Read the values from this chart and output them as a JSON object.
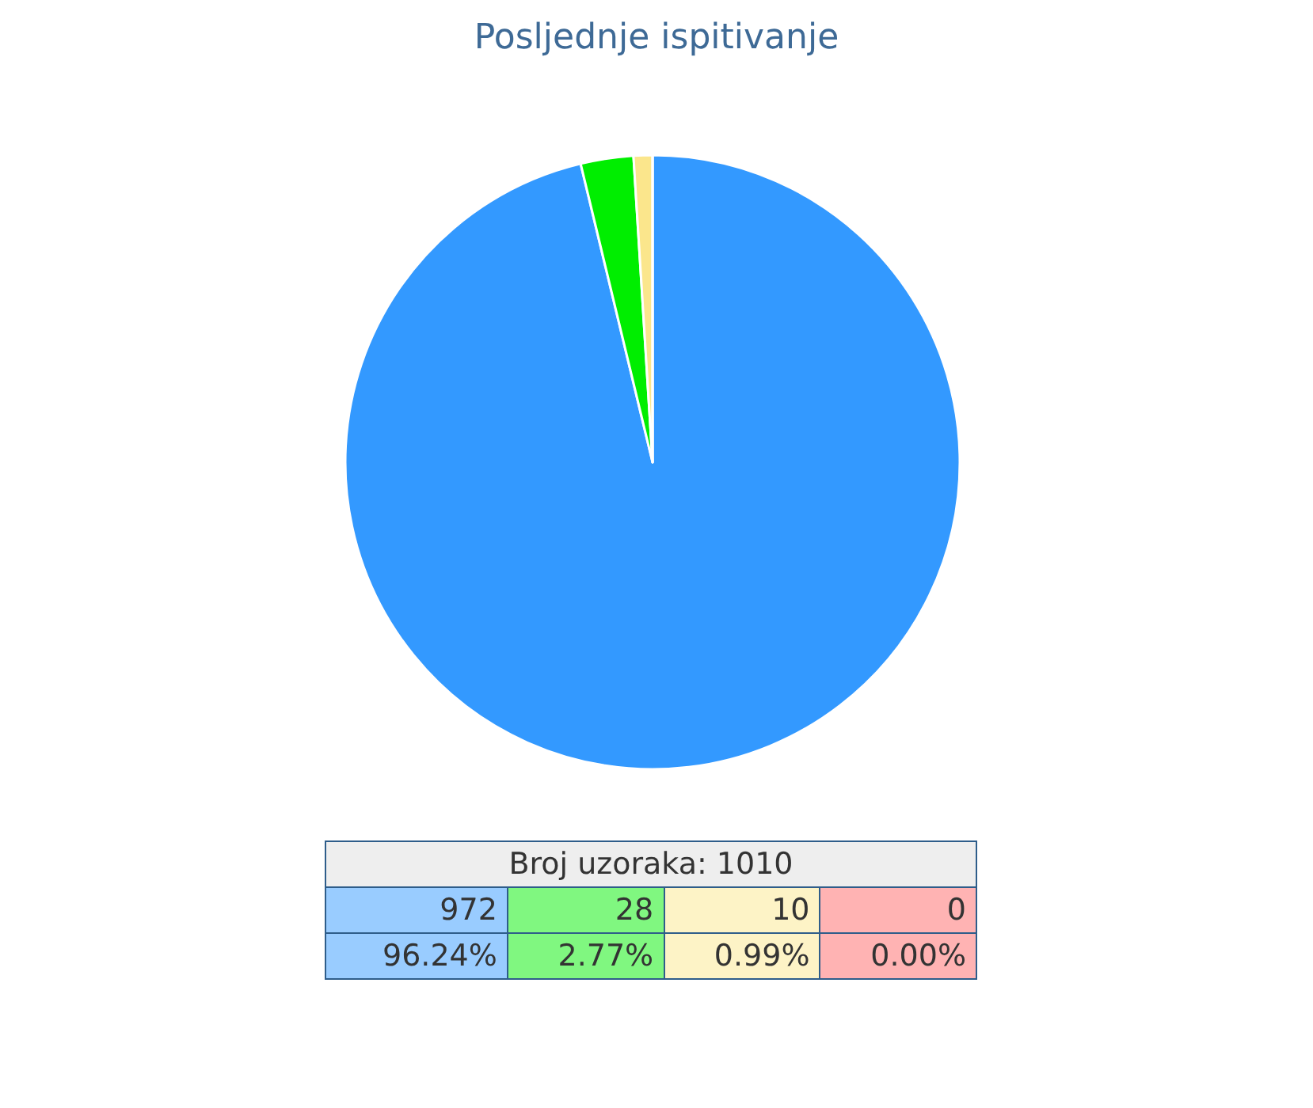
{
  "chart_data": {
    "type": "pie",
    "title": "Posljednje ispitivanje",
    "categories": [
      null,
      null,
      null,
      null
    ],
    "values": [
      96.24,
      2.77,
      0.99,
      0.0
    ],
    "colors": [
      "#3399ff",
      "#00ee00",
      "#fbe68c",
      "#ff6666"
    ],
    "annotations": [
      "Broj uzoraka: 1010",
      "972",
      "28",
      "10",
      "0",
      "96.24%",
      "2.77%",
      "0.99%",
      "0.00%"
    ]
  }
}
